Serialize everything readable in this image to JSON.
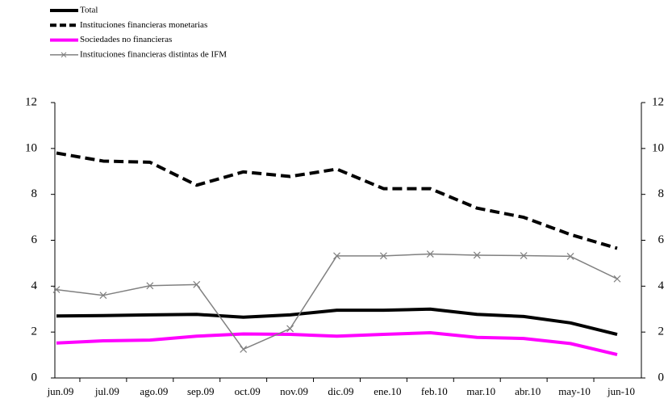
{
  "chart_data": {
    "type": "line",
    "categories": [
      "jun.09",
      "jul.09",
      "ago.09",
      "sep.09",
      "oct.09",
      "nov.09",
      "dic.09",
      "ene.10",
      "feb.10",
      "mar.10",
      "abr.10",
      "may-10",
      "jun-10"
    ],
    "series": [
      {
        "name": "Total",
        "color": "#000000",
        "style": "solid",
        "linewidth": 4,
        "values": [
          2.7,
          2.72,
          2.75,
          2.77,
          2.65,
          2.75,
          2.95,
          2.95,
          3.0,
          2.77,
          2.68,
          2.4,
          1.9
        ]
      },
      {
        "name": "Instituciones financieras monetarias",
        "color": "#000000",
        "style": "dashed",
        "linewidth": 4,
        "values": [
          9.8,
          9.45,
          9.4,
          8.4,
          8.98,
          8.78,
          9.1,
          8.25,
          8.25,
          7.4,
          7.0,
          6.25,
          5.65
        ]
      },
      {
        "name": "Sociedades no financieras",
        "color": "#ff00ff",
        "style": "solid",
        "linewidth": 4,
        "values": [
          1.52,
          1.62,
          1.65,
          1.82,
          1.92,
          1.9,
          1.82,
          1.9,
          1.97,
          1.77,
          1.72,
          1.5,
          1.02
        ]
      },
      {
        "name": "Instituciones financieras distintas de IFM",
        "color": "#808080",
        "style": "solid",
        "linewidth": 1.5,
        "marker": "x",
        "values": [
          3.85,
          3.6,
          4.02,
          4.07,
          1.25,
          2.15,
          5.32,
          5.32,
          5.4,
          5.35,
          5.33,
          5.3,
          4.32
        ]
      }
    ],
    "ylim": [
      0,
      12
    ],
    "yticks": [
      0,
      2,
      4,
      6,
      8,
      10,
      12
    ],
    "y2lim": [
      0,
      12
    ],
    "y2ticks": [
      0,
      2,
      4,
      6,
      8,
      10,
      12
    ],
    "legend": "top-left"
  }
}
